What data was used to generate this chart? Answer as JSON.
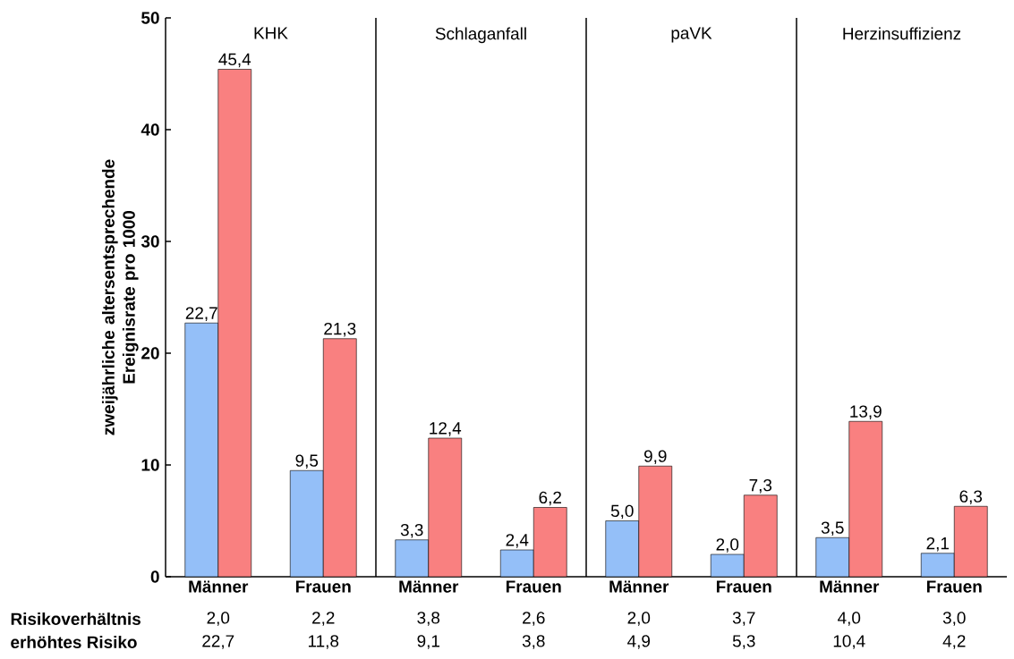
{
  "chart_data": {
    "type": "bar",
    "ylabel": "zweijährliche altersentsprechende Ereignisrate pro 1000",
    "categories": [
      "Männer",
      "Frauen",
      "Männer",
      "Frauen",
      "Männer",
      "Frauen",
      "Männer",
      "Frauen"
    ],
    "series": [
      {
        "color": "#94bff8",
        "values": [
          22.7,
          9.5,
          3.3,
          2.4,
          5.0,
          2.0,
          3.5,
          2.1
        ],
        "value_labels": [
          "22,7",
          "9,5",
          "3,3",
          "2,4",
          "5,0",
          "2,0",
          "3,5",
          "2,1"
        ]
      },
      {
        "color": "#f98080",
        "values": [
          45.4,
          21.3,
          12.4,
          6.2,
          9.9,
          7.3,
          13.9,
          6.3
        ],
        "value_labels": [
          "45,4",
          "21,3",
          "12,4",
          "6,2",
          "9,9",
          "7,3",
          "13,9",
          "6,3"
        ]
      }
    ],
    "ylim": [
      0,
      50
    ],
    "yticks": [
      0,
      10,
      20,
      30,
      40,
      50
    ],
    "annotations": [
      "KHK",
      "Schlaganfall",
      "paVK",
      "Herzinsuffizienz",
      "Risikoverhältnis",
      "2,0",
      "2,2",
      "3,8",
      "2,6",
      "2,0",
      "3,7",
      "4,0",
      "3,0",
      "erhöhtes Risiko",
      "22,7",
      "11,8",
      "9,1",
      "3,8",
      "4,9",
      "5,3",
      "10,4",
      "4,2"
    ]
  }
}
